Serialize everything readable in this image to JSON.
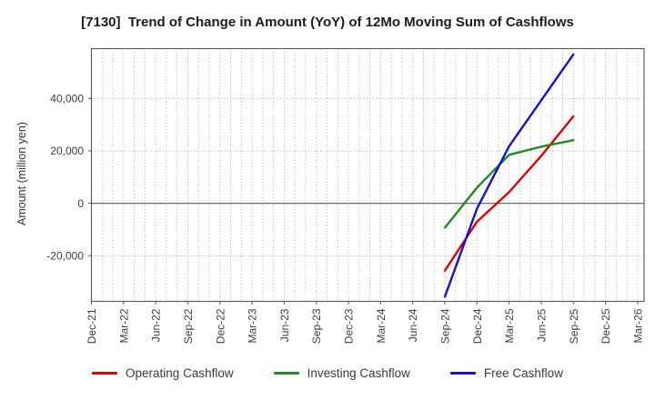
{
  "chart_data": {
    "type": "line",
    "title": "[7130]  Trend of Change in Amount (YoY) of 12Mo Moving Sum of Cashflows",
    "ylabel": "Amount (million yen)",
    "xlabel": "",
    "x_tick_labels": [
      "Dec-21",
      "Mar-22",
      "Jun-22",
      "Sep-22",
      "Dec-22",
      "Mar-23",
      "Jun-23",
      "Sep-23",
      "Dec-23",
      "Mar-24",
      "Jun-24",
      "Sep-24",
      "Dec-24",
      "Mar-25",
      "Jun-25",
      "Sep-25",
      "Dec-25",
      "Mar-26"
    ],
    "x_tick_months": [
      0,
      3,
      6,
      9,
      12,
      15,
      18,
      21,
      24,
      27,
      30,
      33,
      36,
      39,
      42,
      45,
      48,
      51
    ],
    "x_range_months": [
      0,
      51.6
    ],
    "minor_vertical_grid_every_months": 1,
    "ylim": [
      -37400,
      59000
    ],
    "y_ticks": [
      -20000,
      0,
      20000,
      40000
    ],
    "y_tick_labels": [
      "-20,000",
      "0",
      "20,000",
      "40,000"
    ],
    "zero_line": 0,
    "grid": true,
    "legend_position": "bottom",
    "x_point_labels": [
      "Sep-24",
      "Dec-24",
      "Mar-25",
      "Jun-25",
      "Sep-25"
    ],
    "series": [
      {
        "name": "Operating Cashflow",
        "color": "#e60000",
        "x_months": [
          33,
          36,
          39,
          42,
          45
        ],
        "values": [
          -25700,
          -7000,
          4300,
          18100,
          33200
        ]
      },
      {
        "name": "Investing Cashflow",
        "color": "#1e8c1e",
        "x_months": [
          33,
          36,
          39,
          42,
          45
        ],
        "values": [
          -9300,
          6000,
          18500,
          21600,
          24100
        ]
      },
      {
        "name": "Free Cashflow",
        "color": "#1010e0",
        "x_months": [
          33,
          36,
          39,
          42,
          45
        ],
        "values": [
          -35600,
          -2000,
          21800,
          39300,
          56800
        ]
      }
    ]
  }
}
